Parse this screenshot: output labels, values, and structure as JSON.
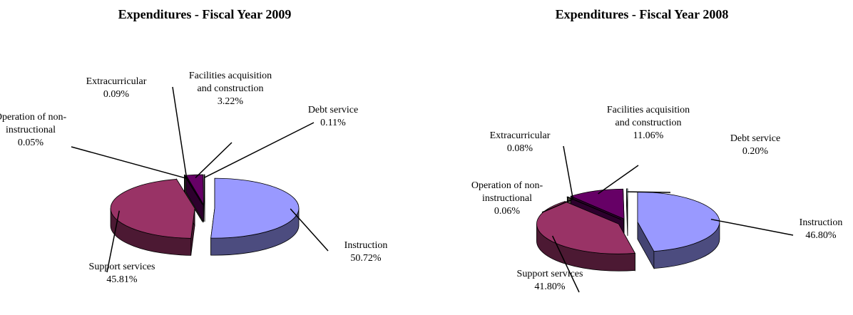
{
  "chart_data": [
    {
      "type": "pie",
      "title": "Expenditures - Fiscal Year 2009",
      "categories": [
        "Instruction",
        "Support services",
        "Operation of non-instructional",
        "Extracurricular",
        "Facilities acquisition and construction",
        "Debt service"
      ],
      "values": [
        50.72,
        45.81,
        0.05,
        0.09,
        3.22,
        0.11
      ],
      "value_labels": [
        "50.72%",
        "45.81%",
        "0.05%",
        "0.09%",
        "3.22%",
        "0.11%"
      ],
      "colors": [
        "#9999ff",
        "#993366",
        "#ffffcc",
        "#a3a385",
        "#660066",
        "#ccffff"
      ]
    },
    {
      "type": "pie",
      "title": "Expenditures - Fiscal Year 2008",
      "categories": [
        "Instruction",
        "Support services",
        "Operation of non-instructional",
        "Extracurricular",
        "Facilities acquisition and construction",
        "Debt service"
      ],
      "values": [
        46.8,
        41.8,
        0.06,
        0.08,
        11.06,
        0.2
      ],
      "value_labels": [
        "46.80%",
        "41.80%",
        "0.06%",
        "0.08%",
        "11.06%",
        "0.20%"
      ],
      "colors": [
        "#9999ff",
        "#993366",
        "#ffffcc",
        "#a3a385",
        "#660066",
        "#ccffff"
      ]
    }
  ]
}
